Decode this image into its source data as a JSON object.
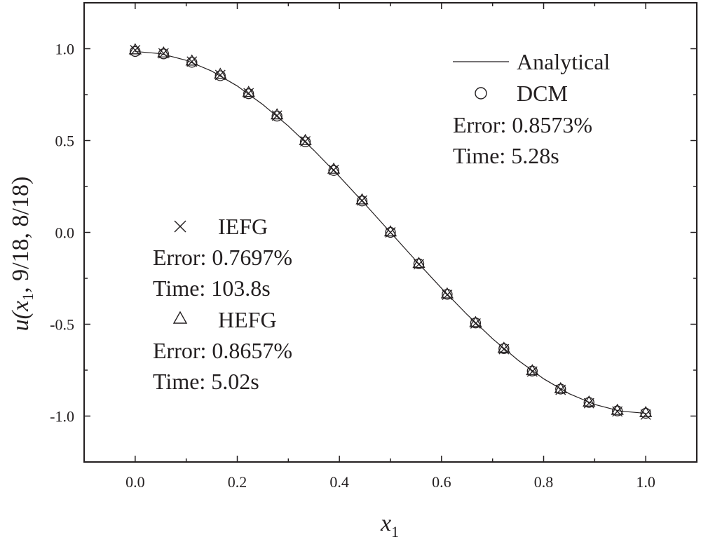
{
  "chart_data": {
    "type": "line",
    "xlabel": "x",
    "xlabel_subscript": "1",
    "ylabel_prefix": "u(x",
    "ylabel_subscript": "1",
    "ylabel_suffix": ", 9/18, 8/18)",
    "xlim": [
      -0.1,
      1.1
    ],
    "ylim": [
      -1.25,
      1.25
    ],
    "xticks": [
      0.0,
      0.2,
      0.4,
      0.6,
      0.8,
      1.0
    ],
    "xtick_labels": [
      "0.0",
      "0.2",
      "0.4",
      "0.6",
      "0.8",
      "1.0"
    ],
    "yticks": [
      1.0,
      0.5,
      0.0,
      -0.5,
      -1.0
    ],
    "ytick_labels": [
      "1.0",
      "0.5",
      "0.0",
      "-0.5",
      "-1.0"
    ],
    "grid": false,
    "series": [
      {
        "name": "Analytical",
        "marker": "line",
        "x": [
          0.0,
          0.05,
          0.1,
          0.15,
          0.2,
          0.25,
          0.3,
          0.35,
          0.4,
          0.45,
          0.5,
          0.55,
          0.6,
          0.65,
          0.7,
          0.75,
          0.8,
          0.85,
          0.9,
          0.95,
          1.0
        ],
        "y": [
          0.985,
          0.973,
          0.937,
          0.878,
          0.797,
          0.696,
          0.579,
          0.447,
          0.304,
          0.154,
          0.0,
          -0.154,
          -0.304,
          -0.447,
          -0.579,
          -0.696,
          -0.797,
          -0.878,
          -0.937,
          -0.973,
          -0.985
        ]
      },
      {
        "name": "DCM",
        "marker": "circle",
        "x": [
          0.0,
          0.0556,
          0.1111,
          0.1667,
          0.2222,
          0.2778,
          0.3333,
          0.3889,
          0.4444,
          0.5,
          0.5556,
          0.6111,
          0.6667,
          0.7222,
          0.7778,
          0.8333,
          0.8889,
          0.9444,
          1.0
        ],
        "y": [
          0.985,
          0.972,
          0.926,
          0.853,
          0.755,
          0.633,
          0.493,
          0.337,
          0.171,
          0.0,
          -0.171,
          -0.337,
          -0.493,
          -0.633,
          -0.755,
          -0.853,
          -0.926,
          -0.972,
          -0.985
        ]
      },
      {
        "name": "IEFG",
        "marker": "cross",
        "x": [
          0.0,
          0.0556,
          0.1111,
          0.1667,
          0.2222,
          0.2778,
          0.3333,
          0.3889,
          0.4444,
          0.5,
          0.5556,
          0.6111,
          0.6667,
          0.7222,
          0.7778,
          0.8333,
          0.8889,
          0.9444,
          1.0
        ],
        "y": [
          0.992,
          0.975,
          0.93,
          0.857,
          0.758,
          0.636,
          0.496,
          0.34,
          0.174,
          0.0,
          -0.174,
          -0.34,
          -0.496,
          -0.636,
          -0.758,
          -0.857,
          -0.93,
          -0.975,
          -0.992
        ]
      },
      {
        "name": "HEFG",
        "marker": "triangle",
        "x": [
          0.0,
          0.0556,
          0.1111,
          0.1667,
          0.2222,
          0.2778,
          0.3333,
          0.3889,
          0.4444,
          0.5,
          0.5556,
          0.6111,
          0.6667,
          0.7222,
          0.7778,
          0.8333,
          0.8889,
          0.9444,
          1.0
        ],
        "y": [
          0.995,
          0.978,
          0.934,
          0.862,
          0.763,
          0.641,
          0.501,
          0.345,
          0.178,
          0.004,
          -0.168,
          -0.334,
          -0.49,
          -0.63,
          -0.752,
          -0.85,
          -0.923,
          -0.968,
          -0.98
        ]
      }
    ],
    "legend": {
      "analytical_label": "Analytical",
      "dcm_label": "DCM",
      "dcm_error": "Error: 0.8573%",
      "dcm_time": "Time: 5.28s",
      "iefg_label": "IEFG",
      "iefg_error": "Error: 0.7697%",
      "iefg_time": "Time: 103.8s",
      "hefg_label": "HEFG",
      "hefg_error": "Error: 0.8657%",
      "hefg_time": "Time: 5.02s"
    }
  }
}
